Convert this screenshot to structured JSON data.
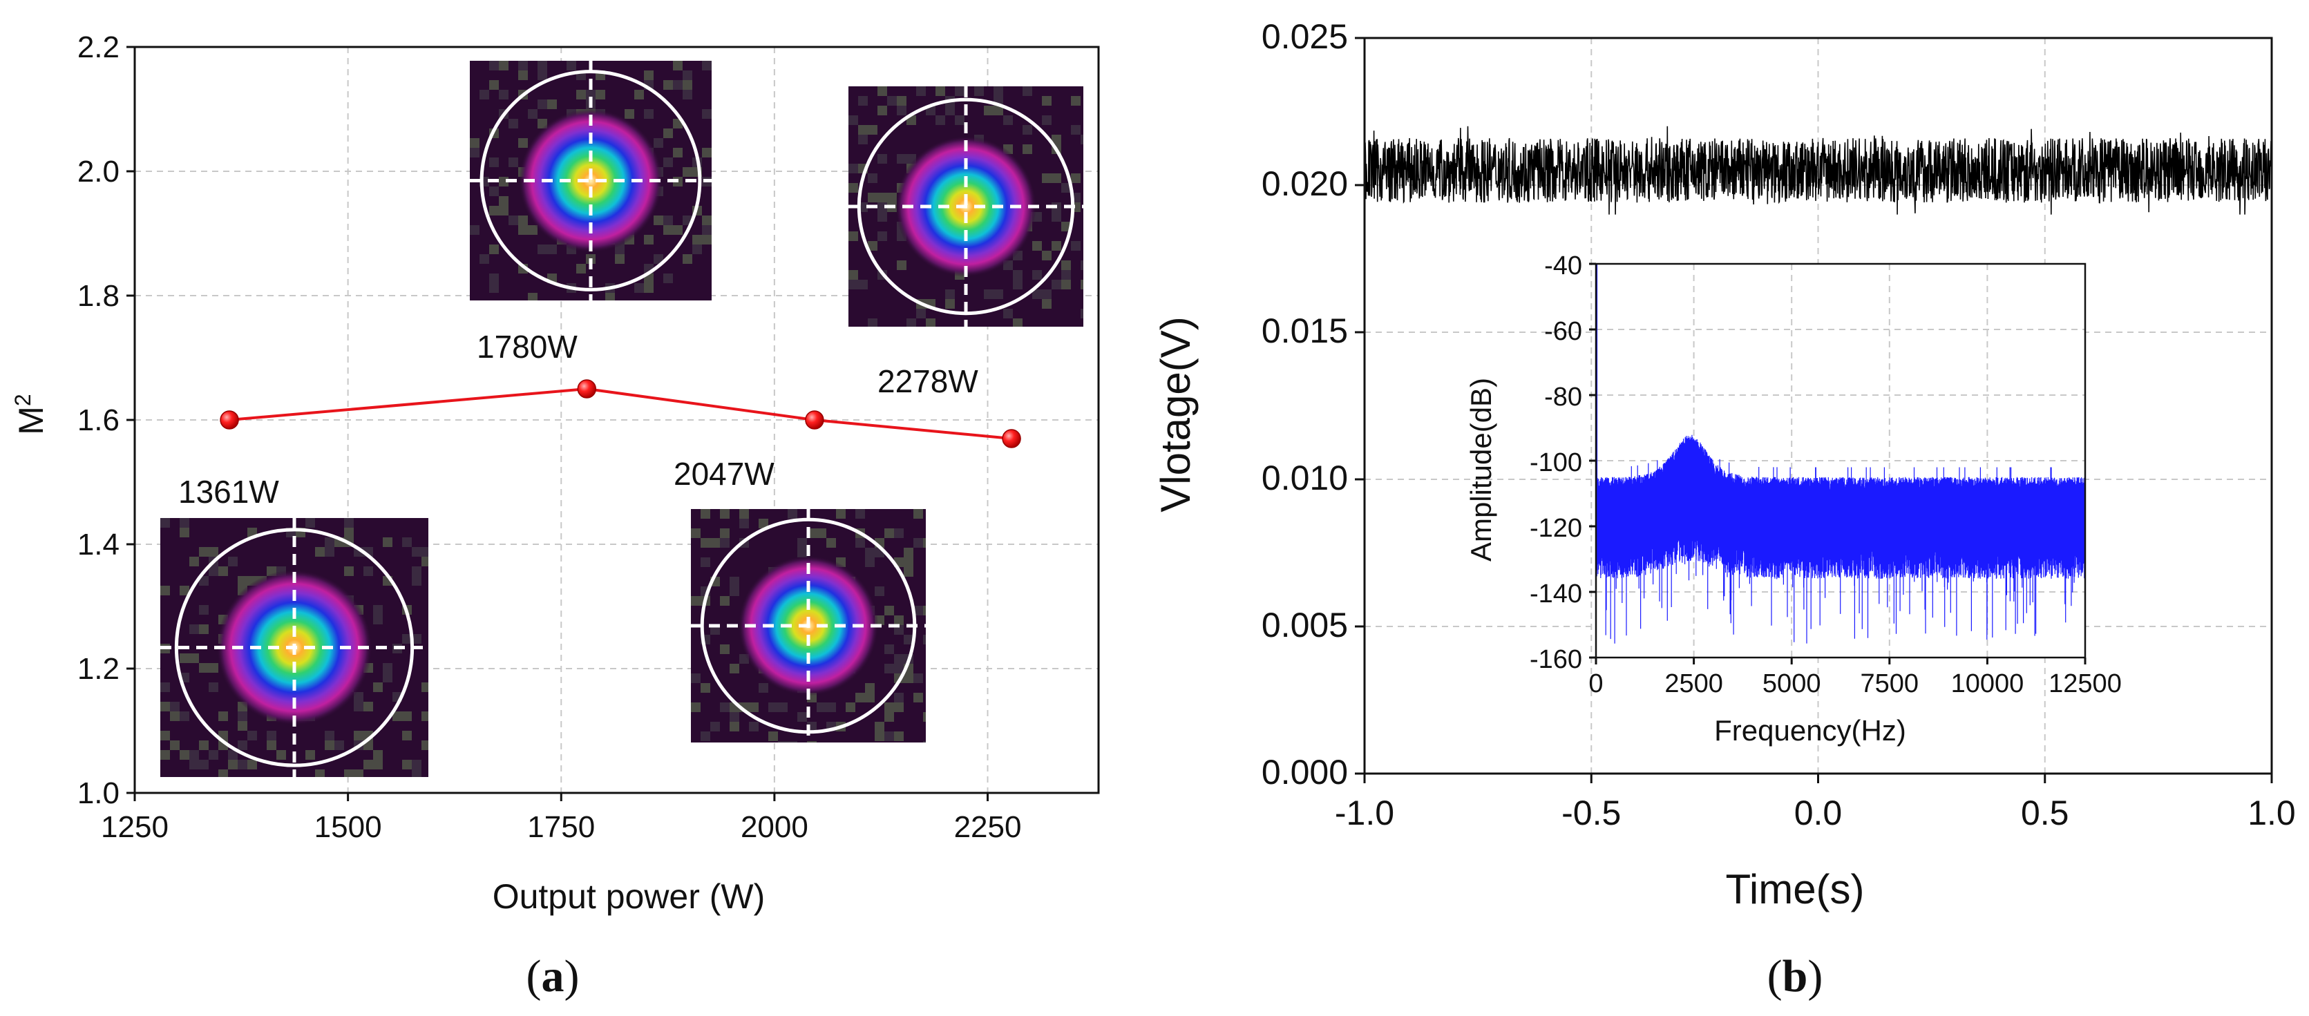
{
  "chart_data": [
    {
      "type": "line",
      "panel": "a",
      "caption_letter": "a",
      "xlabel": "Output power (W)",
      "ylabel_base": "M",
      "ylabel_sup": "2",
      "xlim": [
        1250,
        2380
      ],
      "ylim": [
        1.0,
        2.2
      ],
      "xticks": [
        1250,
        1500,
        1750,
        2000,
        2250
      ],
      "xtick_labels": [
        "1250",
        "1500",
        "1750",
        "2000",
        "2250"
      ],
      "yticks": [
        1.0,
        1.2,
        1.4,
        1.6,
        1.8,
        2.0,
        2.2
      ],
      "ytick_labels": [
        "1.0",
        "1.2",
        "1.4",
        "1.6",
        "1.8",
        "2.0",
        "2.2"
      ],
      "grid": true,
      "series": [
        {
          "name": "M2",
          "color": "#e8141b",
          "x": [
            1361,
            1780,
            2047,
            2278
          ],
          "y": [
            1.6,
            1.65,
            1.6,
            1.57
          ]
        }
      ],
      "annotations": [
        "1361W",
        "1780W",
        "2047W",
        "2278W"
      ],
      "beam_profile_insets": 4
    },
    {
      "type": "line",
      "panel": "b",
      "caption_letter": "b",
      "xlabel": "Time(s)",
      "ylabel": "Vlotage(V)",
      "xlim": [
        -1.0,
        1.0
      ],
      "ylim": [
        0.0,
        0.025
      ],
      "xticks": [
        -1.0,
        -0.5,
        0.0,
        0.5,
        1.0
      ],
      "xtick_labels": [
        "-1.0",
        "-0.5",
        "0.0",
        "0.5",
        "1.0"
      ],
      "yticks": [
        0.0,
        0.005,
        0.01,
        0.015,
        0.02,
        0.025
      ],
      "ytick_labels": [
        "0.000",
        "0.005",
        "0.010",
        "0.015",
        "0.020",
        "0.025"
      ],
      "grid": true,
      "series": [
        {
          "name": "voltage",
          "color": "#000000",
          "mean": 0.0205,
          "noise_band": [
            0.019,
            0.022
          ]
        }
      ],
      "inset": {
        "type": "line",
        "xlabel": "Frequency(Hz)",
        "ylabel": "Amplitude(dB)",
        "xlim": [
          0,
          12500
        ],
        "ylim": [
          -160,
          -40
        ],
        "xticks": [
          0,
          2500,
          5000,
          7500,
          10000,
          12500
        ],
        "xtick_labels": [
          "0",
          "2500",
          "5000",
          "7500",
          "10000",
          "12500"
        ],
        "yticks": [
          -160,
          -140,
          -120,
          -100,
          -80,
          -60,
          -40
        ],
        "ytick_labels": [
          "-160",
          "-140",
          "-120",
          "-100",
          "-80",
          "-60",
          "-40"
        ],
        "grid": true,
        "series": [
          {
            "name": "spectrum",
            "color": "#1a1aff",
            "baseline_db": -118,
            "peak_hz": 2400,
            "peak_db": -97,
            "dc_db": -40
          }
        ]
      }
    }
  ]
}
